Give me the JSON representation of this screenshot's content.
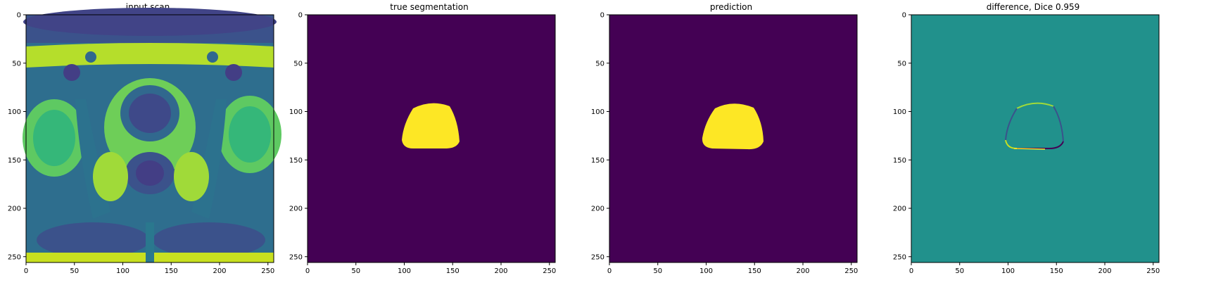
{
  "panels": [
    {
      "title": "input scan",
      "image": "mri-input-scan"
    },
    {
      "title": "true segmentation",
      "image": "ground-truth-mask"
    },
    {
      "title": "prediction",
      "image": "predicted-mask"
    },
    {
      "title": "difference, Dice 0.959",
      "image": "difference-map"
    }
  ],
  "axis_ticks": {
    "x": [
      "0",
      "50",
      "100",
      "150",
      "200",
      "250"
    ],
    "y": [
      "0",
      "50",
      "100",
      "150",
      "200",
      "250"
    ]
  },
  "colors": {
    "viridis_dark": "#440154",
    "viridis_mid": "#21918c",
    "viridis_yellow": "#fde725",
    "viridis_green": "#5ec962",
    "viridis_blue": "#3b528b"
  }
}
